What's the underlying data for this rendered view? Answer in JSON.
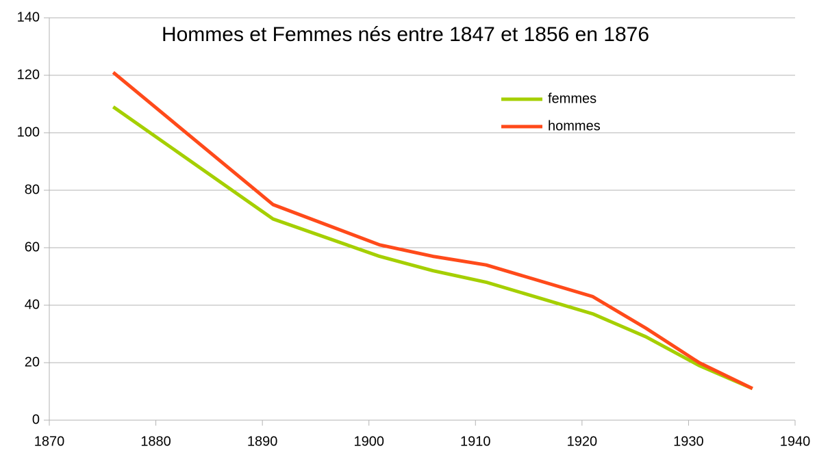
{
  "chart_data": {
    "type": "line",
    "title": "Hommes et Femmes nés entre 1847 et 1856 en 1876",
    "x": [
      1876,
      1891,
      1901,
      1906,
      1911,
      1921,
      1926,
      1931,
      1936
    ],
    "series": [
      {
        "name": "femmes",
        "color": "#a5cf00",
        "values": [
          109,
          70,
          57,
          52,
          48,
          37,
          29,
          19,
          11
        ]
      },
      {
        "name": "hommes",
        "color": "#ff4a1a",
        "values": [
          121,
          75,
          61,
          57,
          54,
          43,
          32,
          20,
          11
        ]
      }
    ],
    "xlim": [
      1870,
      1940
    ],
    "xticks": [
      1870,
      1880,
      1890,
      1900,
      1910,
      1920,
      1930,
      1940
    ],
    "ylim": [
      0,
      140
    ],
    "yticks": [
      0,
      20,
      40,
      60,
      80,
      100,
      120,
      140
    ],
    "grid": true,
    "legend": "right"
  }
}
